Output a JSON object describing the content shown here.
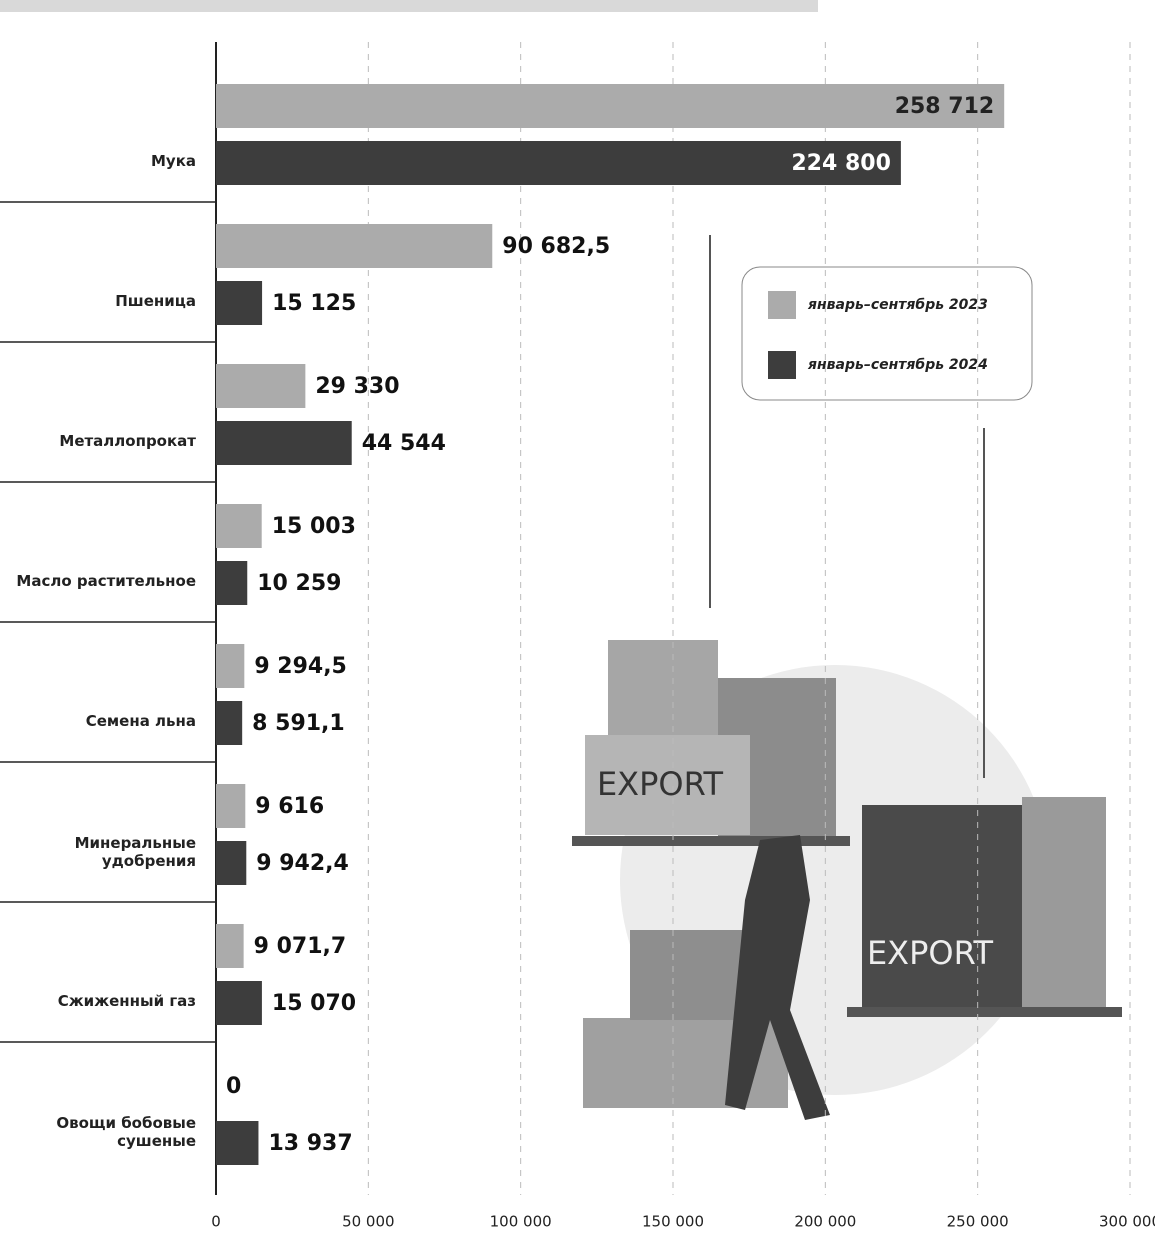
{
  "chart_data": {
    "type": "hbar",
    "categories": [
      "Мука",
      "Пшеница",
      "Металлопрокат",
      "Масло растительное",
      "Семена льна",
      "Минеральные удобрения",
      "Сжиженный газ",
      "Овощи бобовые сушеные"
    ],
    "series": [
      {
        "name": "январь–сентябрь 2023",
        "color": "#ababab",
        "values": [
          258712,
          90682.5,
          29330,
          15003,
          9294.5,
          9616,
          9071.7,
          0
        ],
        "value_labels": [
          "258 712",
          "90 682,5",
          "29 330",
          "15 003",
          "9 294,5",
          "9 616",
          "9 071,7",
          "0"
        ]
      },
      {
        "name": "январь–сентябрь 2024",
        "color": "#3d3d3d",
        "values": [
          224800,
          15125,
          44544,
          10259,
          8591.1,
          9942.4,
          15070,
          13937
        ],
        "value_labels": [
          "224 800",
          "15 125",
          "44 544",
          "10 259",
          "8 591,1",
          "9 942,4",
          "15 070",
          "13 937"
        ]
      }
    ],
    "xlim": [
      0,
      300000
    ],
    "xticks": [
      0,
      {
        "value": 50000,
        "label": "50 000"
      },
      {
        "value": 100000,
        "label": "100 000"
      },
      {
        "value": 150000,
        "label": "150 000"
      },
      {
        "value": 200000,
        "label": "200 000"
      },
      {
        "value": 250000,
        "label": "250 000"
      },
      {
        "value": 300000,
        "label": "300 000"
      }
    ],
    "grid": true
  },
  "illustration": {
    "labels": [
      "EXPORT",
      "EXPORT"
    ]
  }
}
